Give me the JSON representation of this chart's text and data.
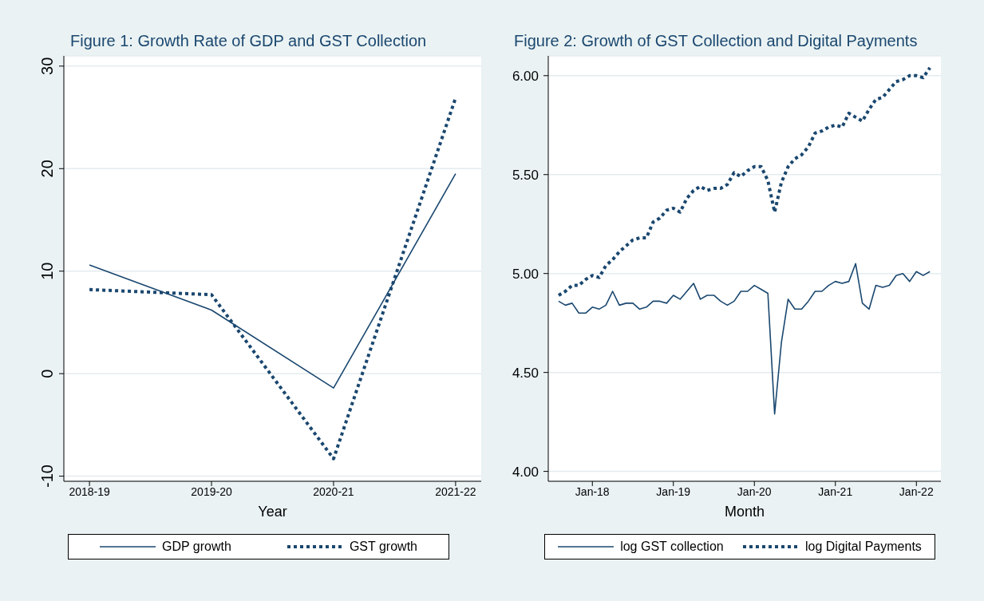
{
  "chart_data": [
    {
      "type": "line",
      "title": "Figure 1: Growth Rate of GDP and GST Collection",
      "xlabel": "Year",
      "categories": [
        "2018-19",
        "2019-20",
        "2020-21",
        "2021-22"
      ],
      "series": [
        {
          "name": "GDP growth",
          "color": "#1a476f",
          "line_style": "solid",
          "values": [
            10.6,
            6.2,
            -1.4,
            19.5
          ]
        },
        {
          "name": "GST growth",
          "color": "#1a476f",
          "line_style": "dotted",
          "values": [
            8.2,
            7.7,
            -8.3,
            26.9
          ]
        }
      ],
      "ylim": [
        -10.5,
        31
      ],
      "yticks": [
        -10,
        0,
        10,
        20,
        30
      ],
      "grid": "y",
      "legend": "bottom",
      "marker": "none"
    },
    {
      "type": "line",
      "title": "Figure 2: Growth of GST Collection and Digital Payments",
      "xlabel": "Month",
      "x": [
        "2017-08",
        "2017-09",
        "2017-10",
        "2017-11",
        "2017-12",
        "2018-01",
        "2018-02",
        "2018-03",
        "2018-04",
        "2018-05",
        "2018-06",
        "2018-07",
        "2018-08",
        "2018-09",
        "2018-10",
        "2018-11",
        "2018-12",
        "2019-01",
        "2019-02",
        "2019-03",
        "2019-04",
        "2019-05",
        "2019-06",
        "2019-07",
        "2019-08",
        "2019-09",
        "2019-10",
        "2019-11",
        "2019-12",
        "2020-01",
        "2020-02",
        "2020-03",
        "2020-04",
        "2020-05",
        "2020-06",
        "2020-07",
        "2020-08",
        "2020-09",
        "2020-10",
        "2020-11",
        "2020-12",
        "2021-01",
        "2021-02",
        "2021-03",
        "2021-04",
        "2021-05",
        "2021-06",
        "2021-07",
        "2021-08",
        "2021-09",
        "2021-10",
        "2021-11",
        "2021-12",
        "2022-01",
        "2022-02",
        "2022-03"
      ],
      "series": [
        {
          "name": "log GST collection",
          "color": "#1a476f",
          "line_style": "solid",
          "values": [
            4.86,
            4.84,
            4.85,
            4.8,
            4.8,
            4.83,
            4.82,
            4.84,
            4.91,
            4.84,
            4.85,
            4.85,
            4.82,
            4.83,
            4.86,
            4.86,
            4.85,
            4.89,
            4.87,
            4.91,
            4.95,
            4.87,
            4.89,
            4.89,
            4.86,
            4.84,
            4.86,
            4.91,
            4.91,
            4.94,
            4.92,
            4.9,
            4.29,
            4.65,
            4.87,
            4.82,
            4.82,
            4.86,
            4.91,
            4.91,
            4.94,
            4.96,
            4.95,
            4.96,
            5.05,
            4.85,
            4.82,
            4.94,
            4.93,
            4.94,
            4.99,
            5.0,
            4.96,
            5.01,
            4.99,
            5.01
          ]
        },
        {
          "name": "log Digital Payments",
          "color": "#1a476f",
          "line_style": "dotted",
          "values": [
            4.89,
            4.91,
            4.94,
            4.94,
            4.97,
            4.99,
            4.98,
            5.04,
            5.07,
            5.11,
            5.14,
            5.17,
            5.18,
            5.18,
            5.26,
            5.28,
            5.32,
            5.33,
            5.31,
            5.38,
            5.42,
            5.44,
            5.42,
            5.43,
            5.43,
            5.45,
            5.51,
            5.49,
            5.52,
            5.54,
            5.54,
            5.47,
            5.31,
            5.46,
            5.54,
            5.58,
            5.6,
            5.64,
            5.71,
            5.72,
            5.74,
            5.75,
            5.74,
            5.81,
            5.79,
            5.77,
            5.83,
            5.88,
            5.89,
            5.93,
            5.97,
            5.98,
            6.0,
            6.0,
            5.99,
            6.04
          ]
        }
      ],
      "xlim": [
        "2017-06-15",
        "2022-04-20"
      ],
      "xticks": [
        {
          "value": "2018-01",
          "label": "Jan-18"
        },
        {
          "value": "2019-01",
          "label": "Jan-19"
        },
        {
          "value": "2020-01",
          "label": "Jan-20"
        },
        {
          "value": "2021-01",
          "label": "Jan-21"
        },
        {
          "value": "2022-01",
          "label": "Jan-22"
        }
      ],
      "ylim": [
        3.95,
        6.1
      ],
      "yticks": [
        {
          "value": 4,
          "label": "4.00"
        },
        {
          "value": 4.5,
          "label": "4.50"
        },
        {
          "value": 5,
          "label": "5.00"
        },
        {
          "value": 5.5,
          "label": "5.50"
        },
        {
          "value": 6,
          "label": "6.00"
        }
      ],
      "grid": "y",
      "legend": "bottom",
      "marker": "none"
    }
  ]
}
